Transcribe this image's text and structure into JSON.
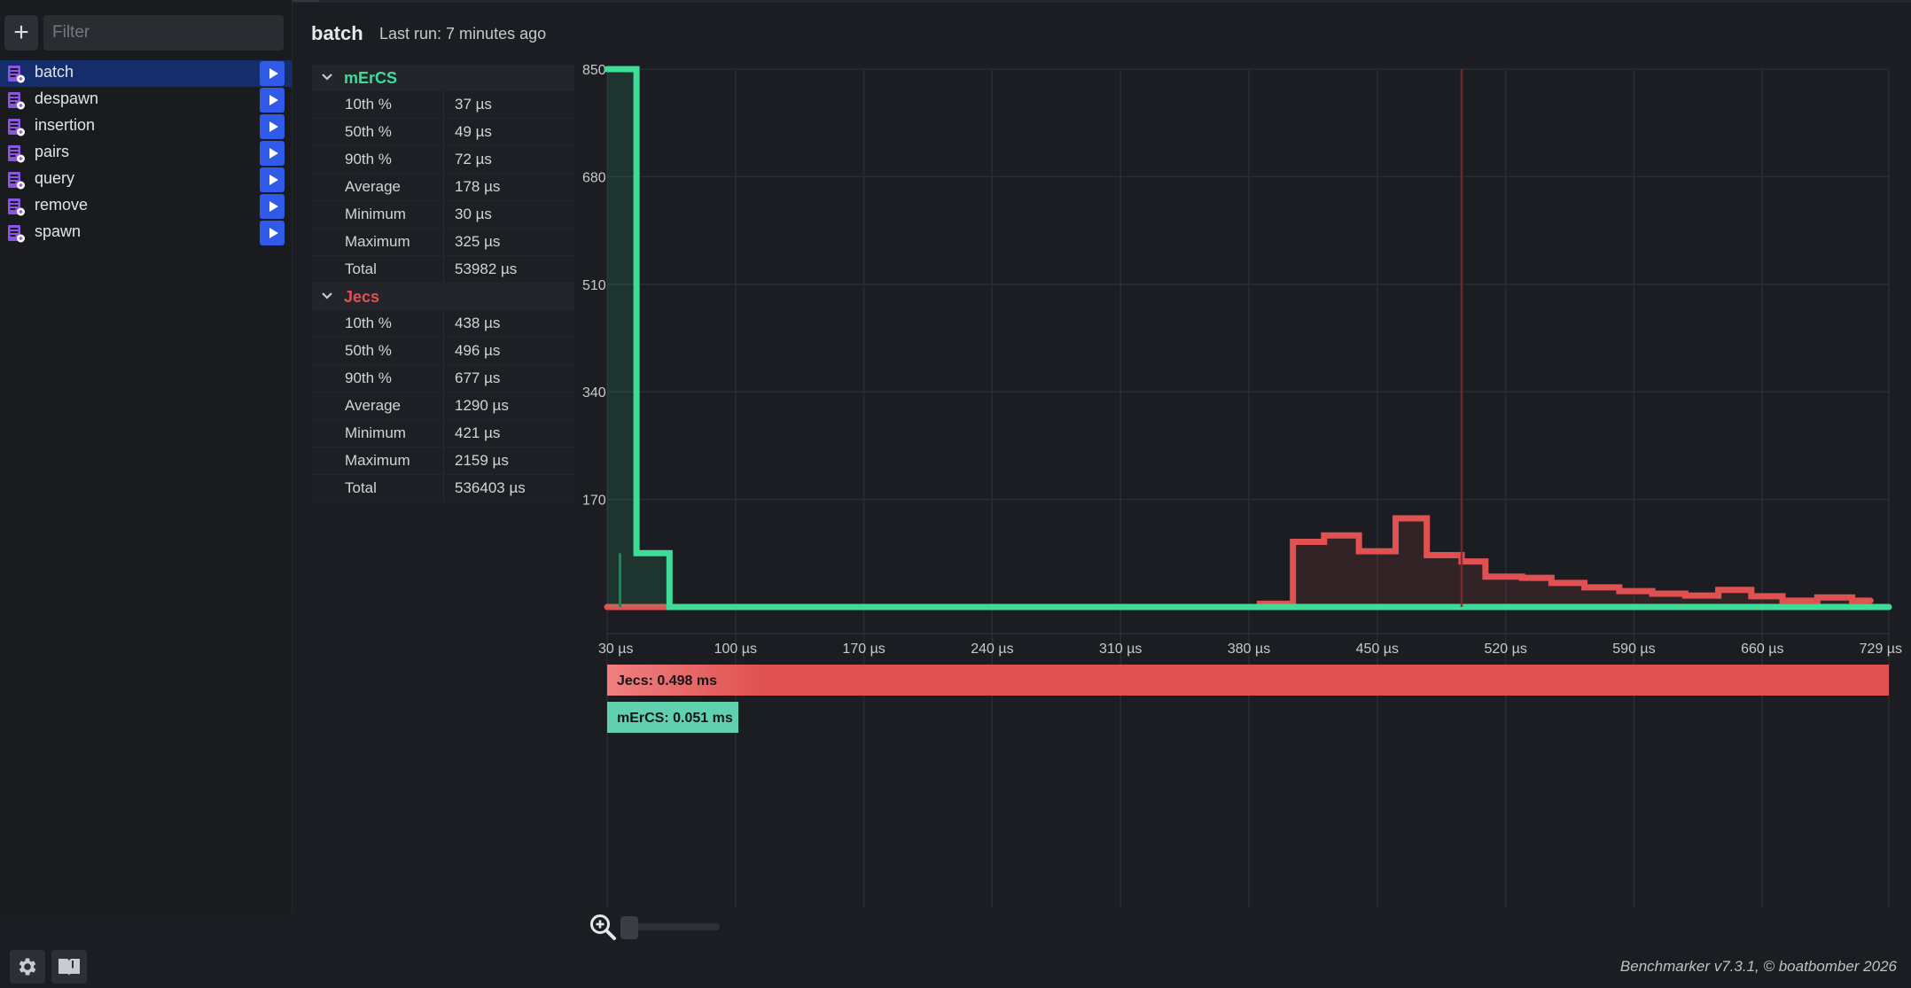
{
  "sidebar": {
    "add_label": "+",
    "filter_placeholder": "Filter",
    "items": [
      {
        "label": "batch",
        "selected": true
      },
      {
        "label": "despawn",
        "selected": false
      },
      {
        "label": "insertion",
        "selected": false
      },
      {
        "label": "pairs",
        "selected": false
      },
      {
        "label": "query",
        "selected": false
      },
      {
        "label": "remove",
        "selected": false
      },
      {
        "label": "spawn",
        "selected": false
      }
    ],
    "item_icon": "benchmark-file-icon",
    "run_icon": "play-icon"
  },
  "header": {
    "title": "batch",
    "last_run": "Last run: 7 minutes ago"
  },
  "stats": [
    {
      "name": "mErCS",
      "color": "#3ddc97",
      "rows": [
        {
          "label": "10th %",
          "value": "37 µs"
        },
        {
          "label": "50th %",
          "value": "49 µs"
        },
        {
          "label": "90th %",
          "value": "72 µs"
        },
        {
          "label": "Average",
          "value": "178 µs"
        },
        {
          "label": "Minimum",
          "value": "30 µs"
        },
        {
          "label": "Maximum",
          "value": "325 µs"
        },
        {
          "label": "Total",
          "value": "53982 µs"
        }
      ]
    },
    {
      "name": "Jecs",
      "color": "#e05252",
      "rows": [
        {
          "label": "10th %",
          "value": "438 µs"
        },
        {
          "label": "50th %",
          "value": "496 µs"
        },
        {
          "label": "90th %",
          "value": "677 µs"
        },
        {
          "label": "Average",
          "value": "1290 µs"
        },
        {
          "label": "Minimum",
          "value": "421 µs"
        },
        {
          "label": "Maximum",
          "value": "2159 µs"
        },
        {
          "label": "Total",
          "value": "536403 µs"
        }
      ]
    }
  ],
  "chart_data": {
    "type": "line",
    "xlim": [
      30,
      729
    ],
    "ylim": [
      0,
      850
    ],
    "x_ticks": [
      30,
      100,
      170,
      240,
      310,
      380,
      450,
      520,
      590,
      660,
      729
    ],
    "x_tick_labels": [
      "30 µs",
      "100 µs",
      "170 µs",
      "240 µs",
      "310 µs",
      "380 µs",
      "450 µs",
      "520 µs",
      "590 µs",
      "660 µs",
      "729 µs"
    ],
    "y_ticks": [
      170,
      340,
      510,
      680,
      850
    ],
    "y_tick_labels": [
      "170",
      "340",
      "510",
      "680",
      "850"
    ],
    "grid": true,
    "series": [
      {
        "name": "mErCS",
        "color": "#3ddc97",
        "steps": [
          [
            30,
            850
          ],
          [
            46,
            85
          ],
          [
            64,
            0
          ],
          [
            729,
            0
          ]
        ]
      },
      {
        "name": "Jecs",
        "color": "#e05252",
        "steps": [
          [
            30,
            0
          ],
          [
            386,
            5
          ],
          [
            404,
            103
          ],
          [
            421,
            113
          ],
          [
            440,
            88
          ],
          [
            460,
            140
          ],
          [
            477,
            82
          ],
          [
            496,
            72
          ],
          [
            509,
            48
          ],
          [
            529,
            46
          ],
          [
            545,
            38
          ],
          [
            563,
            31
          ],
          [
            582,
            25
          ],
          [
            600,
            21
          ],
          [
            618,
            18
          ],
          [
            636,
            27
          ],
          [
            654,
            17
          ],
          [
            671,
            10
          ],
          [
            690,
            15
          ],
          [
            709,
            10
          ],
          [
            719,
            10
          ]
        ]
      }
    ],
    "marker_x": 496,
    "marker_color": "#7a2b2b",
    "bars": [
      {
        "name": "Jecs",
        "label": "Jecs: 0.498 ms",
        "value_ms": 0.498,
        "color": "#e05252"
      },
      {
        "name": "mErCS",
        "label": "mErCS: 0.051 ms",
        "value_ms": 0.051,
        "color": "#5fd1ad"
      }
    ]
  },
  "zoom": {
    "icon": "zoom-in-icon",
    "value": 0.0
  },
  "bottom_buttons": {
    "settings_icon": "gear-icon",
    "docs_icon": "book-icon"
  },
  "footer": "Benchmarker v7.3.1, © boatbomber 2026"
}
